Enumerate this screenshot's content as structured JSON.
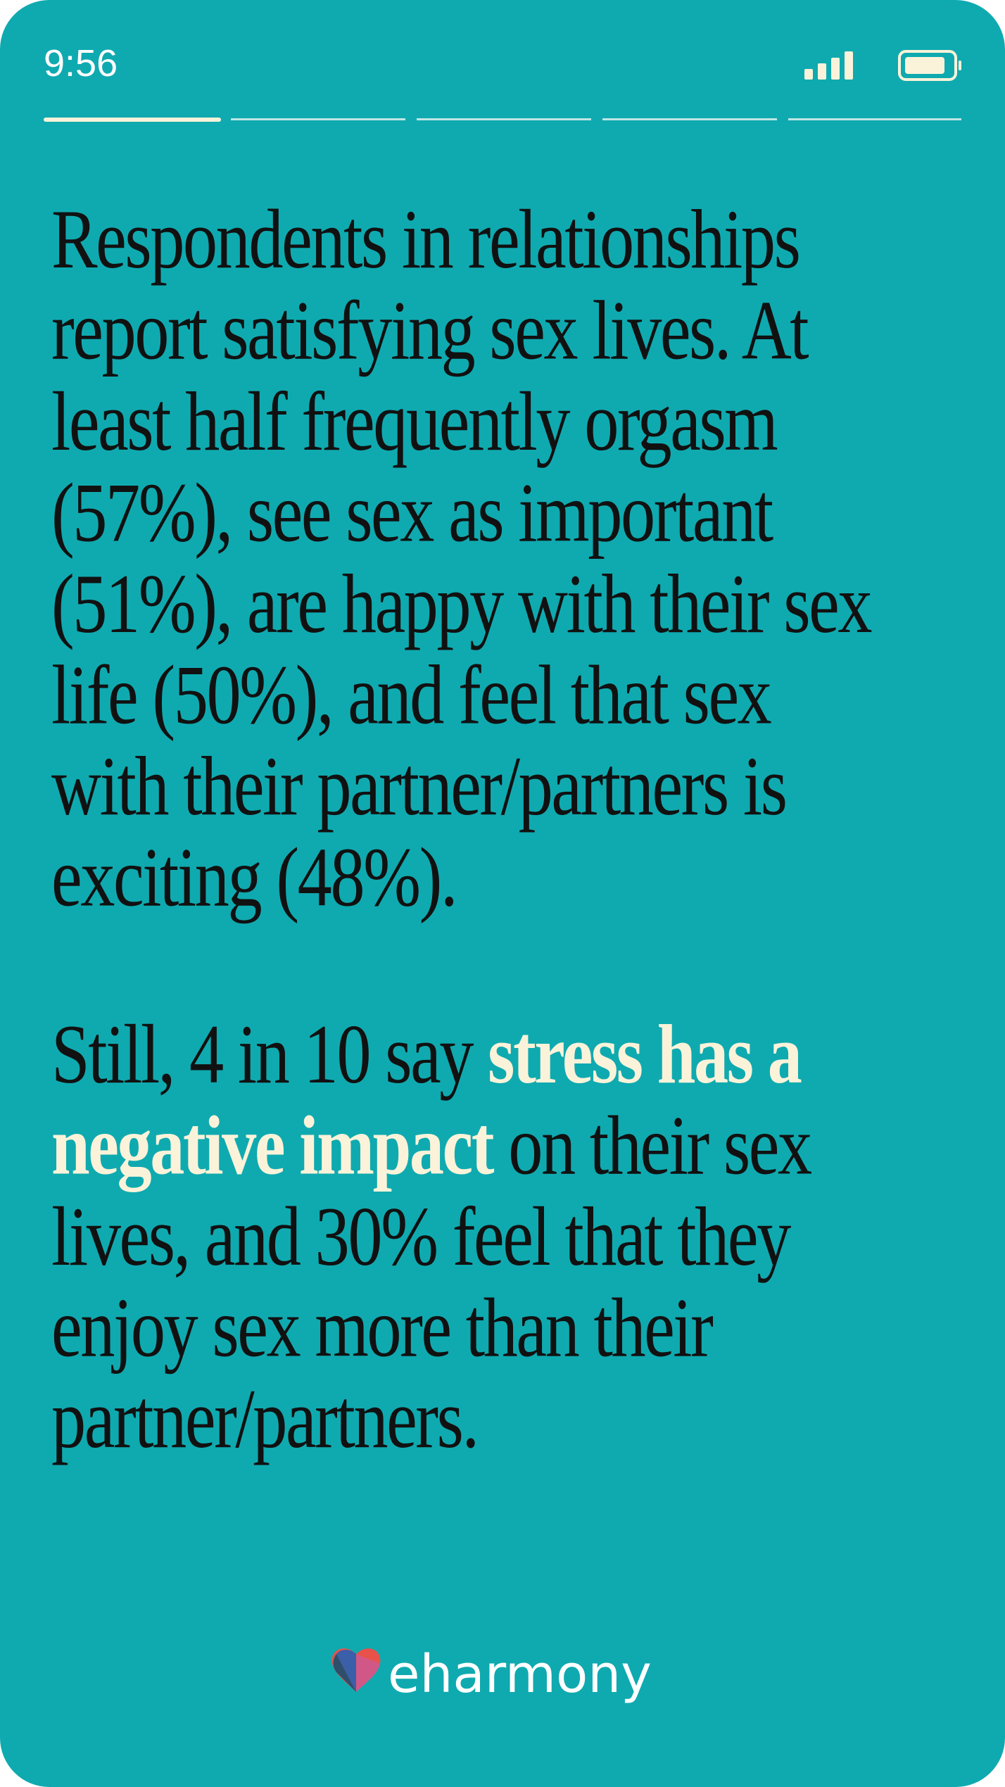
{
  "status_bar": {
    "time": "9:56"
  },
  "paragraph_1": {
    "lines": [
      "Respondents in relationships",
      "report satisfying sex lives. At",
      "least half frequently orgasm",
      "(57%), see sex as important",
      "(51%), are happy with their sex",
      "life (50%), and feel that sex",
      "with their partner/partners is",
      "exciting (48%)."
    ]
  },
  "paragraph_2": {
    "lines": [
      [
        {
          "text": "Still, 4 in 10 say ",
          "highlight": false
        },
        {
          "text": "stress has a",
          "highlight": true
        }
      ],
      [
        {
          "text": "negative impact",
          "highlight": true
        },
        {
          "text": " on their sex",
          "highlight": false
        }
      ],
      [
        {
          "text": "lives, and 30% feel that they",
          "highlight": false
        }
      ],
      [
        {
          "text": "enjoy sex more than their",
          "highlight": false
        }
      ],
      [
        {
          "text": "partner/partners.",
          "highlight": false
        }
      ]
    ]
  },
  "logo": {
    "text": "eharmony"
  }
}
